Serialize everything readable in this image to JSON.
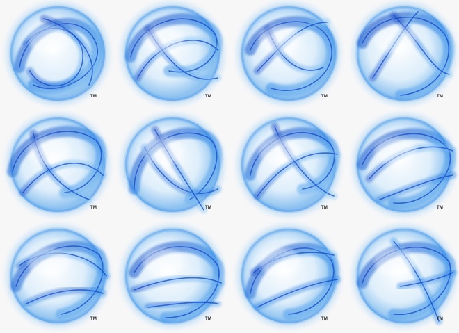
{
  "mark_text": "TM",
  "colors": {
    "background": "#f7f7f8",
    "deep_blue": "#1448c8",
    "mid_blue": "#2f86e6",
    "light_blue": "#8cc8f4",
    "pale_blue": "#d8ecfb"
  },
  "logos": [
    {
      "variant": 1,
      "icon": "swirl-globe-icon",
      "mark": "TM"
    },
    {
      "variant": 2,
      "icon": "swirl-globe-icon",
      "mark": "TM"
    },
    {
      "variant": 3,
      "icon": "swirl-globe-icon",
      "mark": "TM"
    },
    {
      "variant": 4,
      "icon": "swirl-globe-icon",
      "mark": "TM"
    },
    {
      "variant": 5,
      "icon": "swirl-globe-icon",
      "mark": "TM"
    },
    {
      "variant": 6,
      "icon": "swirl-globe-icon",
      "mark": "TM"
    },
    {
      "variant": 7,
      "icon": "swirl-globe-icon",
      "mark": "TM"
    },
    {
      "variant": 8,
      "icon": "swirl-globe-icon",
      "mark": "TM"
    },
    {
      "variant": 9,
      "icon": "swirl-globe-icon",
      "mark": "TM"
    },
    {
      "variant": 10,
      "icon": "swirl-globe-icon",
      "mark": "TM"
    },
    {
      "variant": 11,
      "icon": "swirl-globe-icon",
      "mark": "TM"
    },
    {
      "variant": 12,
      "icon": "swirl-globe-icon",
      "mark": "TM"
    }
  ]
}
